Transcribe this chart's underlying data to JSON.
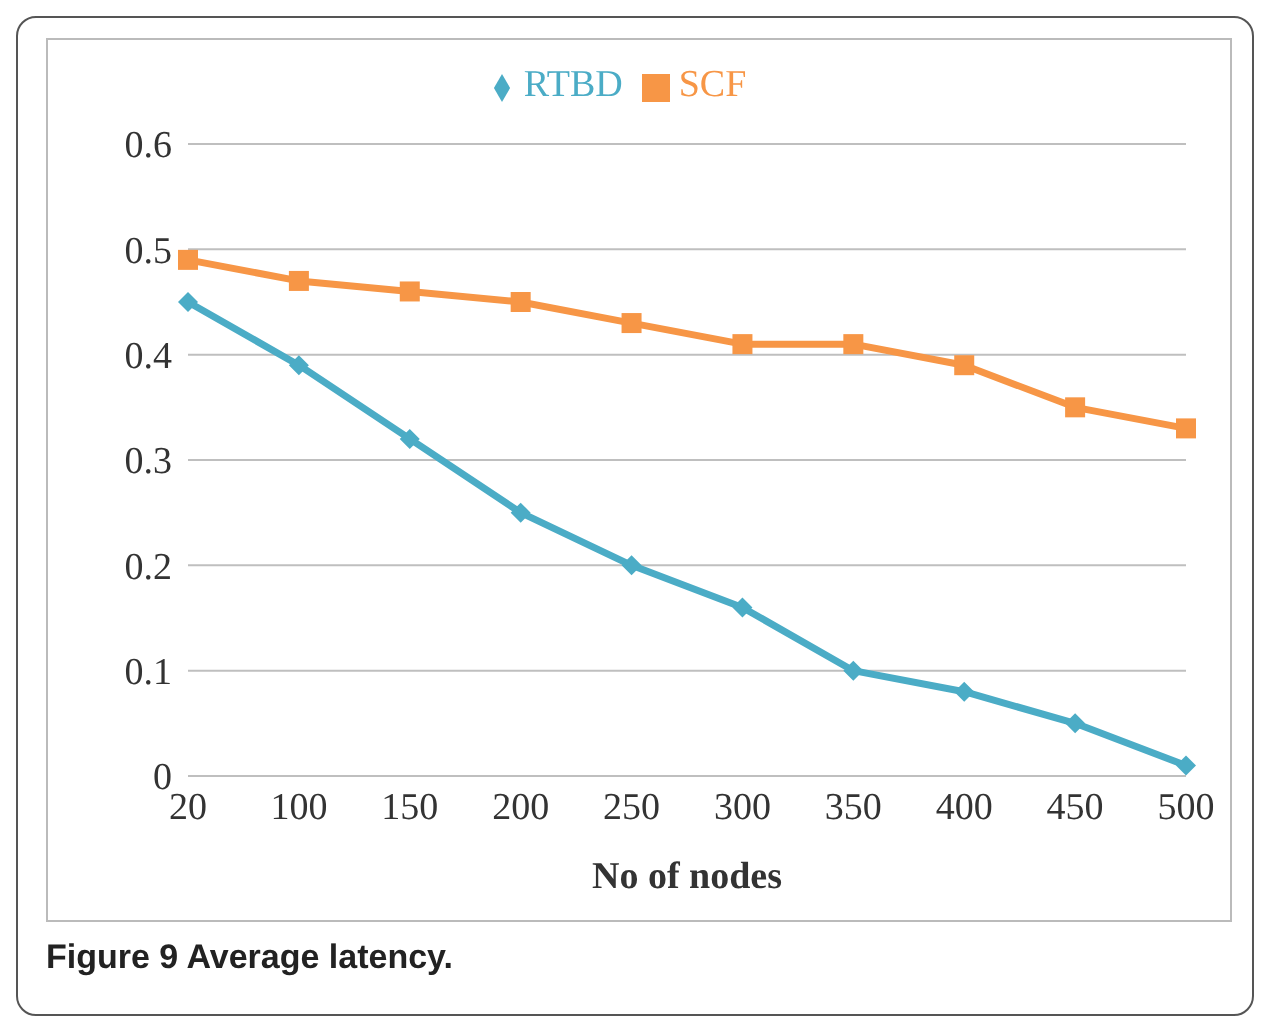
{
  "chart_data": {
    "type": "line",
    "xlabel": "No of nodes",
    "annotations": [
      "Figure 9 Average latency."
    ],
    "categories": [
      "20",
      "100",
      "150",
      "200",
      "250",
      "300",
      "350",
      "400",
      "450",
      "500"
    ],
    "series": [
      {
        "name": "SCF",
        "color": "#f79646",
        "marker": "square",
        "values": [
          0.49,
          0.47,
          0.46,
          0.45,
          0.43,
          0.41,
          0.41,
          0.39,
          0.35,
          0.33
        ]
      },
      {
        "name": "RTBD",
        "color": "#4bacc6",
        "marker": "diamond",
        "values": [
          0.45,
          0.39,
          0.32,
          0.25,
          0.2,
          0.16,
          0.1,
          0.08,
          0.05,
          0.01
        ]
      }
    ],
    "ylim": [
      0,
      0.6
    ],
    "yticks": [
      0,
      0.1,
      0.2,
      0.3,
      0.4,
      0.5,
      0.6
    ],
    "grid": "y",
    "legend": "top"
  }
}
